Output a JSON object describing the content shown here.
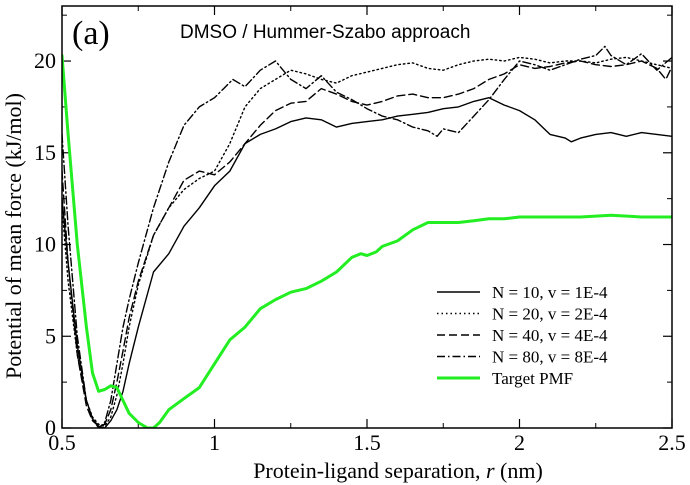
{
  "chart_data": {
    "type": "line",
    "panel_label": "(a)",
    "title": "DMSO / Hummer-Szabo approach",
    "xlabel_prefix": "Protein-ligand separation, ",
    "xlabel_var": "r",
    "xlabel_suffix": " (nm)",
    "ylabel": "Potential of mean force (kJ/mol)",
    "xlim": [
      0.5,
      2.5
    ],
    "ylim": [
      0,
      23
    ],
    "x_ticks": [
      0.5,
      1,
      1.5,
      2,
      2.5
    ],
    "x_tick_labels": [
      "0.5",
      "1",
      "1.5",
      "2",
      "2.5"
    ],
    "y_ticks": [
      0,
      5,
      10,
      15,
      20
    ],
    "y_tick_labels": [
      "0",
      "5",
      "10",
      "15",
      "20"
    ],
    "legend_position": "lower-right",
    "series": [
      {
        "name": "N = 10, v = 1E-4",
        "style": "solid",
        "color": "#000000",
        "x": [
          0.5,
          0.52,
          0.55,
          0.58,
          0.6,
          0.62,
          0.64,
          0.66,
          0.68,
          0.7,
          0.72,
          0.75,
          0.8,
          0.85,
          0.9,
          0.95,
          1.0,
          1.05,
          1.1,
          1.15,
          1.2,
          1.25,
          1.3,
          1.35,
          1.4,
          1.45,
          1.5,
          1.55,
          1.6,
          1.65,
          1.7,
          1.75,
          1.8,
          1.85,
          1.9,
          1.95,
          2.0,
          2.05,
          2.1,
          2.15,
          2.17,
          2.2,
          2.25,
          2.3,
          2.35,
          2.4,
          2.45,
          2.5
        ],
        "y": [
          12.5,
          9.0,
          4.5,
          1.5,
          0.5,
          0.1,
          0.0,
          0.4,
          1.0,
          2.0,
          3.5,
          5.5,
          8.5,
          9.5,
          11.0,
          12.0,
          13.2,
          14.0,
          15.5,
          16.0,
          16.3,
          16.7,
          16.9,
          16.8,
          16.4,
          16.6,
          16.7,
          16.8,
          17.0,
          17.1,
          17.2,
          17.4,
          17.5,
          17.8,
          18.0,
          17.6,
          17.3,
          16.8,
          16.0,
          15.8,
          15.6,
          15.8,
          16.0,
          16.1,
          15.9,
          16.1,
          16.0,
          15.9
        ]
      },
      {
        "name": "N = 20, v = 2E-4",
        "style": "dotted",
        "color": "#000000",
        "x": [
          0.5,
          0.52,
          0.55,
          0.58,
          0.6,
          0.62,
          0.64,
          0.66,
          0.68,
          0.7,
          0.72,
          0.75,
          0.8,
          0.85,
          0.9,
          0.95,
          1.0,
          1.05,
          1.1,
          1.15,
          1.2,
          1.25,
          1.3,
          1.35,
          1.4,
          1.45,
          1.5,
          1.55,
          1.6,
          1.65,
          1.7,
          1.75,
          1.8,
          1.85,
          1.9,
          1.95,
          2.0,
          2.05,
          2.1,
          2.15,
          2.2,
          2.25,
          2.3,
          2.35,
          2.4,
          2.45,
          2.5
        ],
        "y": [
          12.0,
          8.0,
          4.0,
          1.5,
          0.6,
          0.2,
          0.1,
          0.6,
          1.8,
          3.5,
          5.5,
          7.8,
          10.5,
          12.0,
          13.0,
          13.6,
          14.0,
          15.5,
          17.5,
          18.5,
          19.0,
          19.5,
          19.3,
          19.0,
          18.8,
          19.2,
          19.4,
          19.6,
          19.8,
          19.9,
          19.6,
          19.5,
          19.8,
          20.0,
          20.1,
          20.0,
          20.2,
          20.1,
          19.9,
          20.0,
          20.0,
          19.9,
          20.1,
          20.2,
          20.0,
          19.8,
          19.6
        ]
      },
      {
        "name": "N = 40, v = 4E-4",
        "style": "dashed",
        "color": "#000000",
        "x": [
          0.5,
          0.52,
          0.55,
          0.58,
          0.6,
          0.62,
          0.64,
          0.66,
          0.68,
          0.7,
          0.72,
          0.75,
          0.8,
          0.85,
          0.9,
          0.95,
          1.0,
          1.05,
          1.1,
          1.15,
          1.2,
          1.25,
          1.3,
          1.35,
          1.4,
          1.45,
          1.5,
          1.55,
          1.6,
          1.65,
          1.7,
          1.75,
          1.8,
          1.85,
          1.9,
          1.95,
          2.0,
          2.05,
          2.1,
          2.15,
          2.2,
          2.25,
          2.3,
          2.35,
          2.4,
          2.45,
          2.48,
          2.5
        ],
        "y": [
          14.0,
          9.0,
          4.0,
          1.2,
          0.4,
          0.1,
          0.2,
          1.0,
          2.5,
          4.2,
          6.0,
          8.0,
          10.5,
          12.0,
          13.5,
          14.0,
          13.8,
          14.5,
          15.5,
          16.5,
          17.3,
          17.7,
          17.8,
          18.5,
          18.2,
          17.8,
          17.6,
          17.8,
          18.1,
          18.2,
          18.0,
          18.0,
          18.2,
          18.5,
          19.0,
          19.3,
          19.8,
          19.6,
          19.7,
          19.9,
          20.0,
          19.8,
          19.7,
          19.8,
          20.0,
          19.6,
          19.0,
          19.7
        ]
      },
      {
        "name": "N = 80, v = 8E-4",
        "style": "dash-dot",
        "color": "#000000",
        "x": [
          0.5,
          0.52,
          0.55,
          0.58,
          0.6,
          0.62,
          0.64,
          0.66,
          0.68,
          0.7,
          0.72,
          0.75,
          0.8,
          0.85,
          0.9,
          0.95,
          1.0,
          1.03,
          1.06,
          1.1,
          1.15,
          1.2,
          1.25,
          1.3,
          1.35,
          1.4,
          1.45,
          1.5,
          1.55,
          1.6,
          1.65,
          1.7,
          1.73,
          1.75,
          1.8,
          1.85,
          1.9,
          1.95,
          2.0,
          2.05,
          2.1,
          2.15,
          2.2,
          2.25,
          2.28,
          2.3,
          2.35,
          2.4,
          2.45,
          2.5
        ],
        "y": [
          16.0,
          11.0,
          5.0,
          1.5,
          0.5,
          0.0,
          0.3,
          1.5,
          3.5,
          5.5,
          7.0,
          9.0,
          12.0,
          14.5,
          16.5,
          17.5,
          18.0,
          18.5,
          19.0,
          18.6,
          19.5,
          20.0,
          19.0,
          18.5,
          19.2,
          18.3,
          17.9,
          17.4,
          17.0,
          16.8,
          16.4,
          16.2,
          15.9,
          16.3,
          16.1,
          17.0,
          17.9,
          19.0,
          20.0,
          19.8,
          19.5,
          19.8,
          20.1,
          20.3,
          20.8,
          20.3,
          19.8,
          20.4,
          19.5,
          20.2
        ]
      },
      {
        "name": "Target PMF",
        "style": "solid",
        "color": "#22ee22",
        "x": [
          0.5,
          0.52,
          0.55,
          0.58,
          0.6,
          0.62,
          0.64,
          0.66,
          0.68,
          0.7,
          0.72,
          0.75,
          0.78,
          0.8,
          0.82,
          0.85,
          0.9,
          0.95,
          1.0,
          1.05,
          1.1,
          1.15,
          1.2,
          1.25,
          1.3,
          1.35,
          1.4,
          1.45,
          1.48,
          1.5,
          1.53,
          1.55,
          1.6,
          1.65,
          1.7,
          1.75,
          1.8,
          1.85,
          1.9,
          1.95,
          2.0,
          2.1,
          2.2,
          2.3,
          2.4,
          2.5
        ],
        "y": [
          20.3,
          16.0,
          10.0,
          5.5,
          3.0,
          2.0,
          2.1,
          2.3,
          2.2,
          1.5,
          0.8,
          0.3,
          0.0,
          0.0,
          0.3,
          1.0,
          1.6,
          2.2,
          3.5,
          4.8,
          5.5,
          6.5,
          7.0,
          7.4,
          7.6,
          8.0,
          8.5,
          9.3,
          9.5,
          9.4,
          9.6,
          9.9,
          10.2,
          10.8,
          11.2,
          11.2,
          11.2,
          11.3,
          11.4,
          11.4,
          11.5,
          11.5,
          11.5,
          11.6,
          11.5,
          11.5
        ]
      }
    ]
  }
}
